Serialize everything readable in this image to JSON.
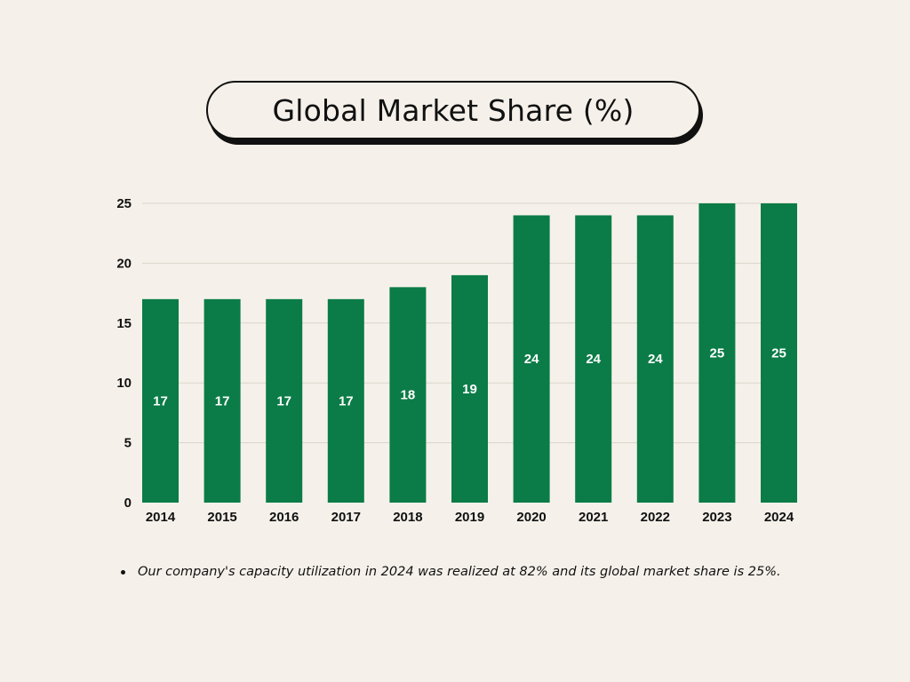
{
  "title": "Global Market Share (%)",
  "note": "Our company's capacity utilization in 2024 was realized at 82% and its global market share is 25%.",
  "colors": {
    "bar": "#0b7c47",
    "grid": "#d9d5cc",
    "background": "#f5f1ea",
    "text": "#111111",
    "bar_label": "#ffffff"
  },
  "chart_data": {
    "type": "bar",
    "title": "Global Market Share (%)",
    "xlabel": "",
    "ylabel": "",
    "categories": [
      "2014",
      "2015",
      "2016",
      "2017",
      "2018",
      "2019",
      "2020",
      "2021",
      "2022",
      "2023",
      "2024"
    ],
    "values": [
      17,
      17,
      17,
      17,
      18,
      19,
      24,
      24,
      24,
      25,
      25
    ],
    "data_labels": [
      "17",
      "17",
      "17",
      "17",
      "18",
      "19",
      "24",
      "24",
      "24",
      "25",
      "25"
    ],
    "ylim": [
      0,
      25
    ],
    "yticks": [
      0,
      5,
      10,
      15,
      20,
      25
    ],
    "grid": true,
    "legend": "none"
  }
}
